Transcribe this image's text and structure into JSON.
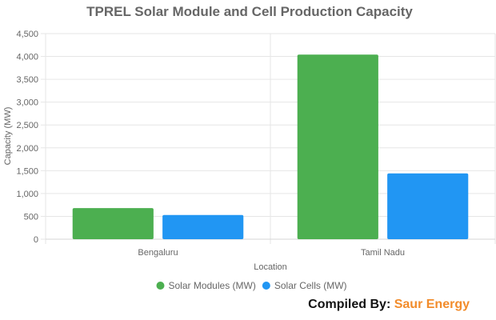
{
  "chart_data": {
    "type": "bar",
    "title": "TPREL Solar Module and Cell Production Capacity",
    "xlabel": "Location",
    "ylabel": "Capacity (MW)",
    "categories": [
      "Bengaluru",
      "Tamil Nadu"
    ],
    "series": [
      {
        "name": "Solar Modules (MW)",
        "color": "#4caf50",
        "values": [
          680,
          4040
        ]
      },
      {
        "name": "Solar Cells (MW)",
        "color": "#2196f3",
        "values": [
          530,
          1440
        ]
      }
    ],
    "ylim": [
      0,
      4500
    ],
    "yticks": [
      "0",
      "500",
      "1,000",
      "1,500",
      "2,000",
      "2,500",
      "3,000",
      "3,500",
      "4,000",
      "4,500"
    ],
    "grid": true,
    "legend_position": "bottom"
  },
  "credit": {
    "label": "Compiled By:",
    "brand": "Saur Energy",
    "brand_color": "#f28c2b"
  }
}
